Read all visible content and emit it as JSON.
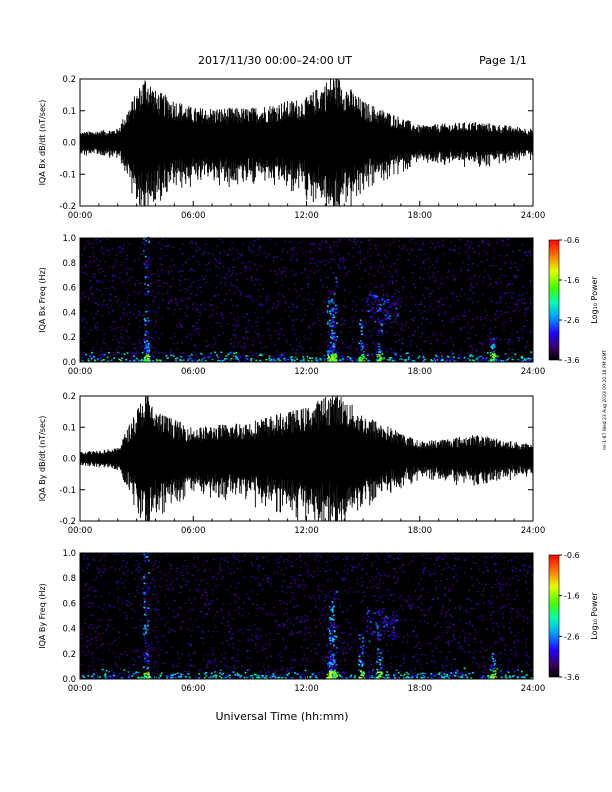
{
  "header": {
    "title": "2017/11/30  00:00–24:00 UT",
    "page": "Page 1/1"
  },
  "footer": {
    "xlabel": "Universal Time (hh:mm)"
  },
  "side_note": "ml-1-87 Wed 23 Aug 2023 09:20:18 PM GMT",
  "time_ticks": [
    "00:00",
    "06:00",
    "12:00",
    "18:00",
    "24:00"
  ],
  "colorbar": {
    "label": "Log₁₀ Power",
    "ticks": [
      "-0.6",
      "-1.6",
      "-2.6",
      "-3.6"
    ]
  },
  "chart_data": [
    {
      "type": "line",
      "ylabel": "IQA Bx dB/dt (nT/sec)",
      "ylim": [
        -0.2,
        0.2
      ],
      "yticks": [
        "0.2",
        "0.1",
        "0.0",
        "-0.1",
        "-0.2"
      ],
      "x": [
        "00:00",
        "02:00",
        "03:30",
        "04:00",
        "06:00",
        "09:00",
        "12:00",
        "13:30",
        "15:00",
        "18:00",
        "21:00",
        "24:00"
      ],
      "envelope": [
        0.03,
        0.04,
        0.2,
        0.15,
        0.1,
        0.1,
        0.13,
        0.2,
        0.12,
        0.05,
        0.06,
        0.04
      ]
    },
    {
      "type": "heatmap",
      "ylabel": "IQA Bx Freq (Hz)",
      "ylim": [
        0.0,
        1.0
      ],
      "yticks": [
        "1.0",
        "0.8",
        "0.6",
        "0.4",
        "0.2",
        "0.0"
      ],
      "clim": [
        -3.6,
        -0.6
      ]
    },
    {
      "type": "line",
      "ylabel": "IQA By dB/dt (nT/sec)",
      "ylim": [
        -0.2,
        0.2
      ],
      "yticks": [
        "0.2",
        "0.1",
        "0.0",
        "-0.1",
        "-0.2"
      ],
      "x": [
        "00:00",
        "02:00",
        "03:30",
        "04:00",
        "06:00",
        "09:00",
        "12:00",
        "13:30",
        "15:00",
        "18:00",
        "21:00",
        "24:00"
      ],
      "envelope": [
        0.02,
        0.03,
        0.2,
        0.14,
        0.09,
        0.11,
        0.15,
        0.2,
        0.13,
        0.05,
        0.07,
        0.04
      ]
    },
    {
      "type": "heatmap",
      "ylabel": "IQA By Freq (Hz)",
      "ylim": [
        0.0,
        1.0
      ],
      "yticks": [
        "1.0",
        "0.8",
        "0.6",
        "0.4",
        "0.2",
        "0.0"
      ],
      "clim": [
        -3.6,
        -0.6
      ]
    }
  ]
}
